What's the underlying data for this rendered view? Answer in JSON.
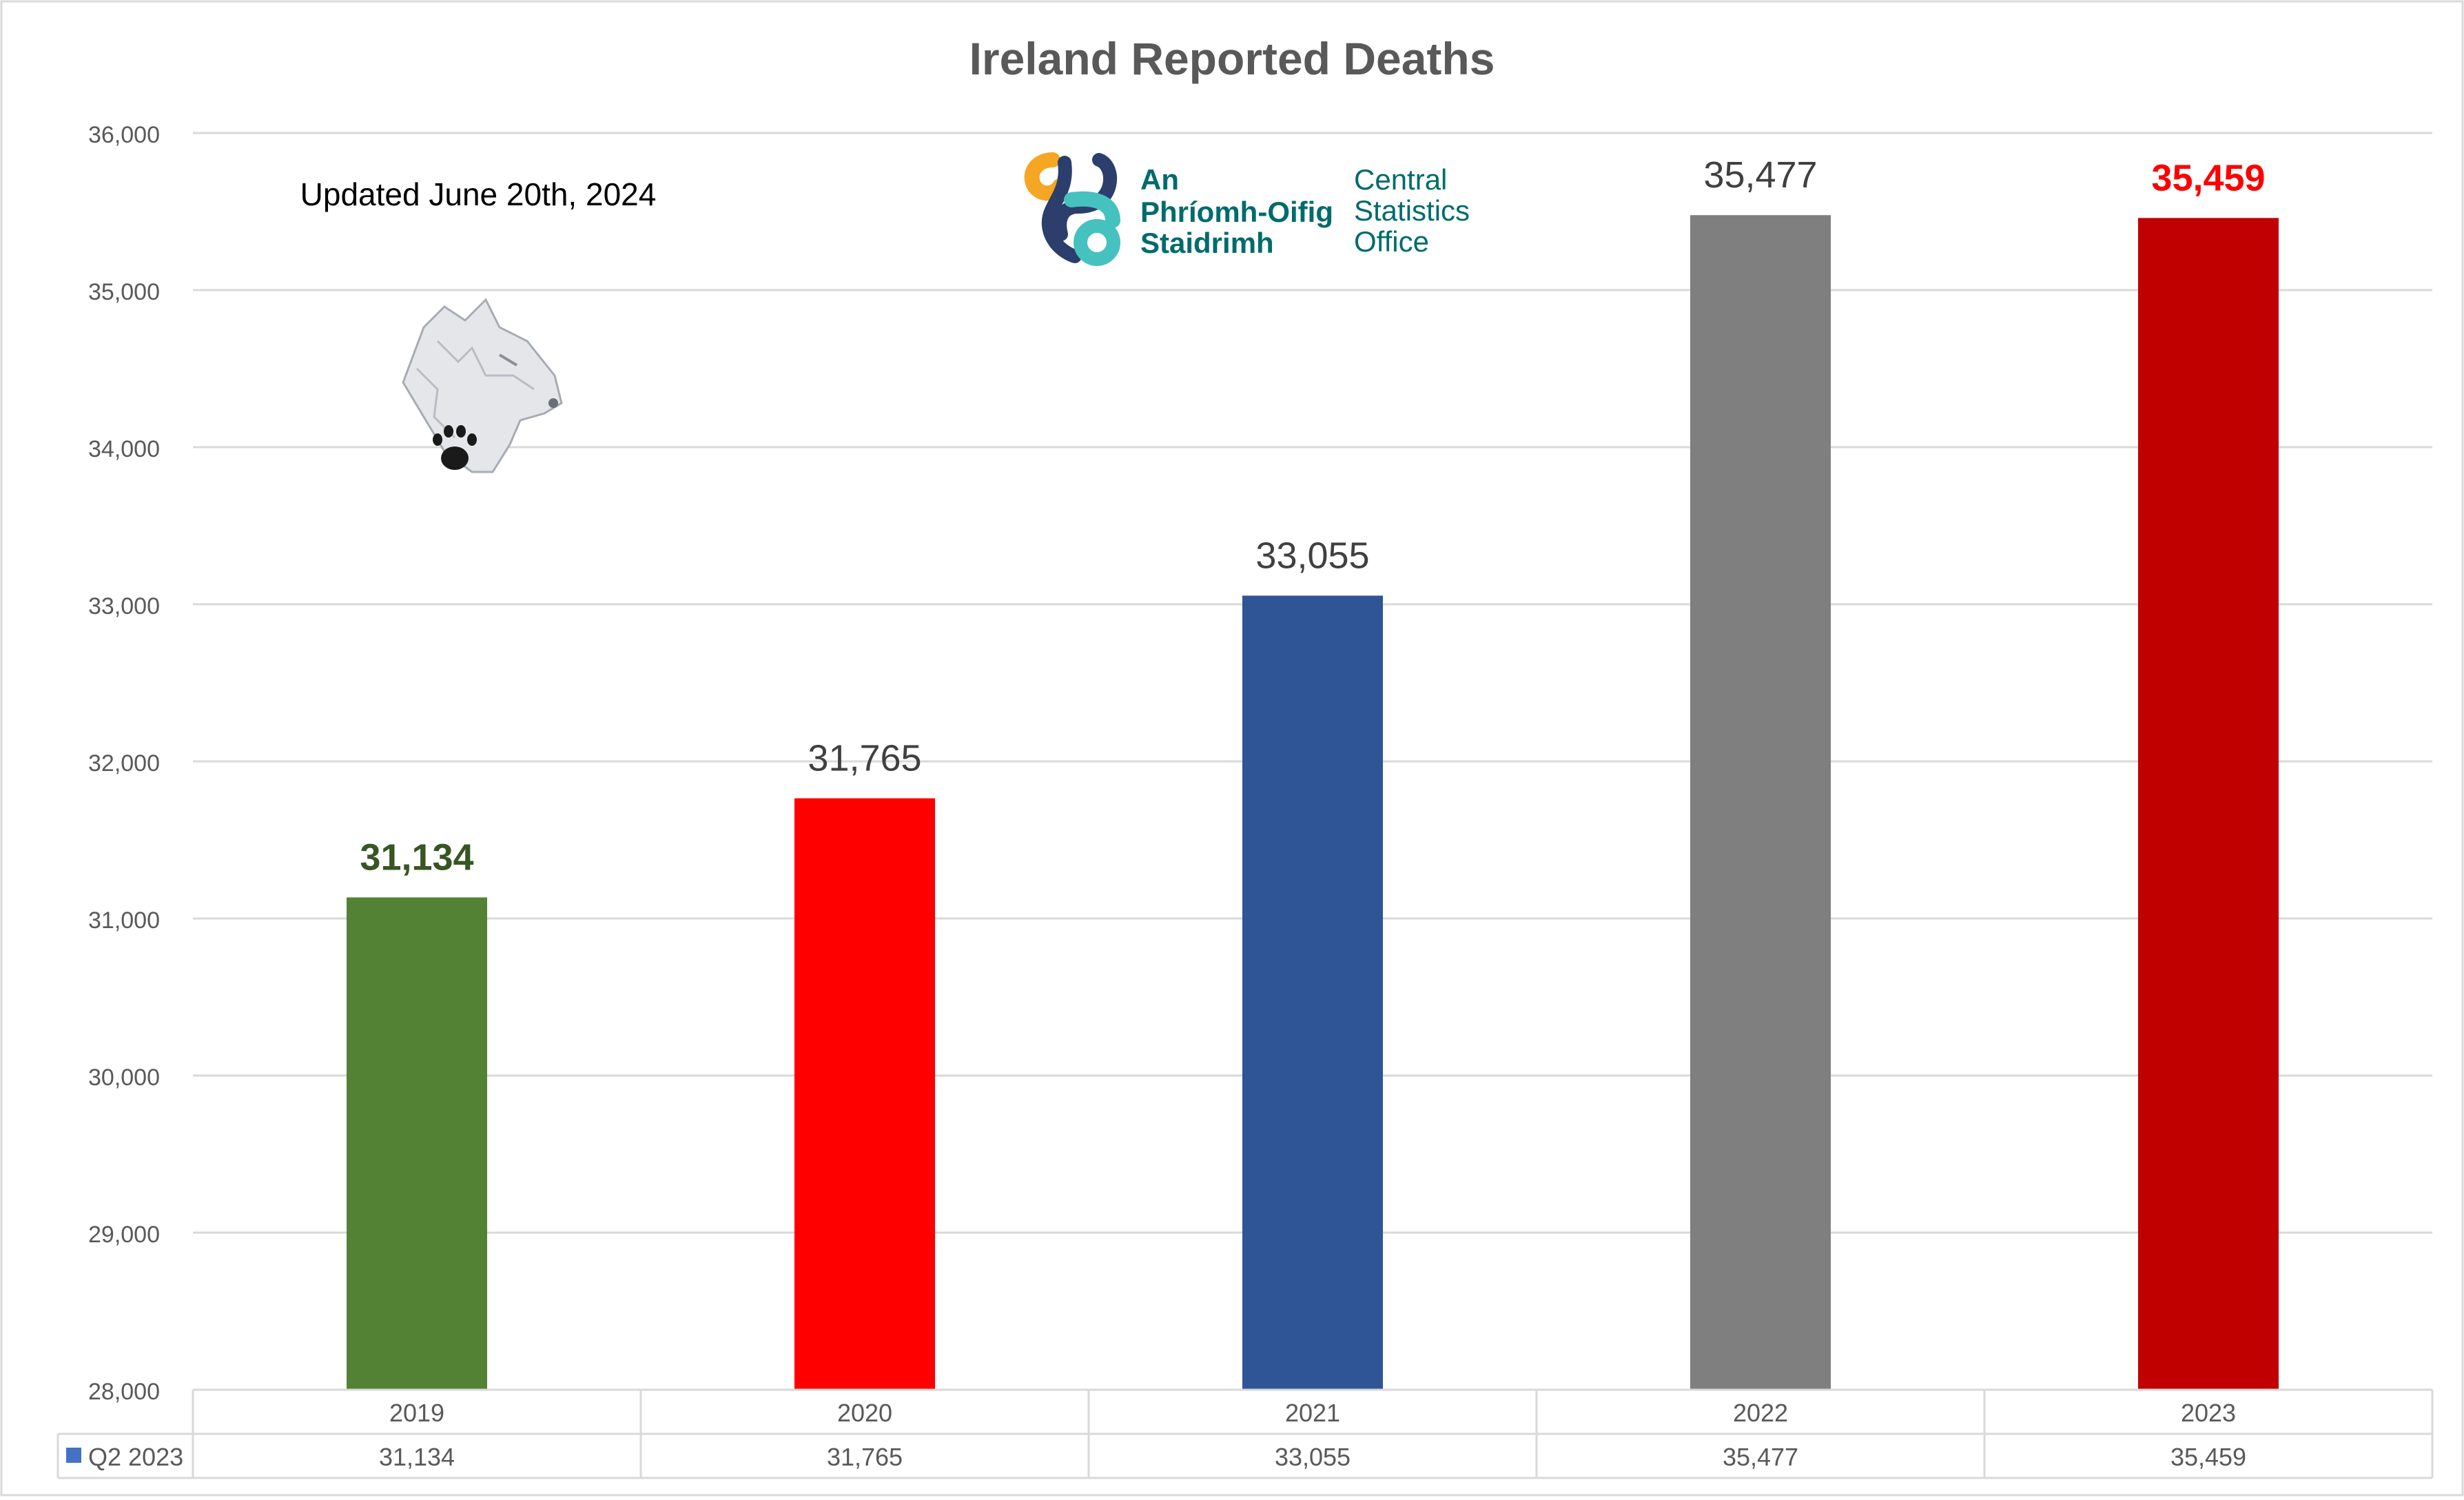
{
  "chart_data": {
    "type": "bar",
    "title": "Ireland Reported Deaths",
    "annotation": "Updated June 20th, 2024",
    "categories": [
      "2019",
      "2020",
      "2021",
      "2022",
      "2023"
    ],
    "series": [
      {
        "name": "Q2 2023",
        "values": [
          31134,
          31765,
          33055,
          35477,
          35459
        ],
        "value_labels": [
          "31,134",
          "31,765",
          "33,055",
          "35,477",
          "35,459"
        ],
        "bar_colors": [
          "#548235",
          "#ff0000",
          "#2f5597",
          "#7f7f7f",
          "#c00000"
        ],
        "label_colors": [
          "#375623",
          "#404040",
          "#404040",
          "#404040",
          "#ff0000"
        ],
        "label_bold": [
          true,
          false,
          false,
          false,
          true
        ]
      }
    ],
    "ylim": [
      28000,
      36000
    ],
    "yticks": [
      28000,
      29000,
      30000,
      31000,
      32000,
      33000,
      34000,
      35000,
      36000
    ],
    "ytick_labels": [
      "28,000",
      "29,000",
      "30,000",
      "31,000",
      "32,000",
      "33,000",
      "34,000",
      "35,000",
      "36,000"
    ],
    "grid": true,
    "xlabel": "",
    "ylabel": "",
    "data_table": {
      "legend_key_color": "#4472c4",
      "row_label": "Q2 2023",
      "values": [
        "31,134",
        "31,765",
        "33,055",
        "35,477",
        "35,459"
      ]
    }
  },
  "logo": {
    "line1": "An",
    "line2": "Phríomh-Oifig",
    "line3": "Staidrimh",
    "line4": "Central",
    "line5": "Statistics",
    "line6": "Office",
    "name": "cso-logo-icon",
    "colors": {
      "teal": "#006b6b",
      "orange": "#f5a623",
      "navy": "#2c3e6b",
      "aqua": "#45c1c0"
    }
  },
  "wolf_image": {
    "name": "wolf-head-paw-icon"
  },
  "colors": {
    "title": "#595959",
    "tick": "#595959",
    "grid": "#d9d9d9",
    "border": "#d9d9d9"
  }
}
